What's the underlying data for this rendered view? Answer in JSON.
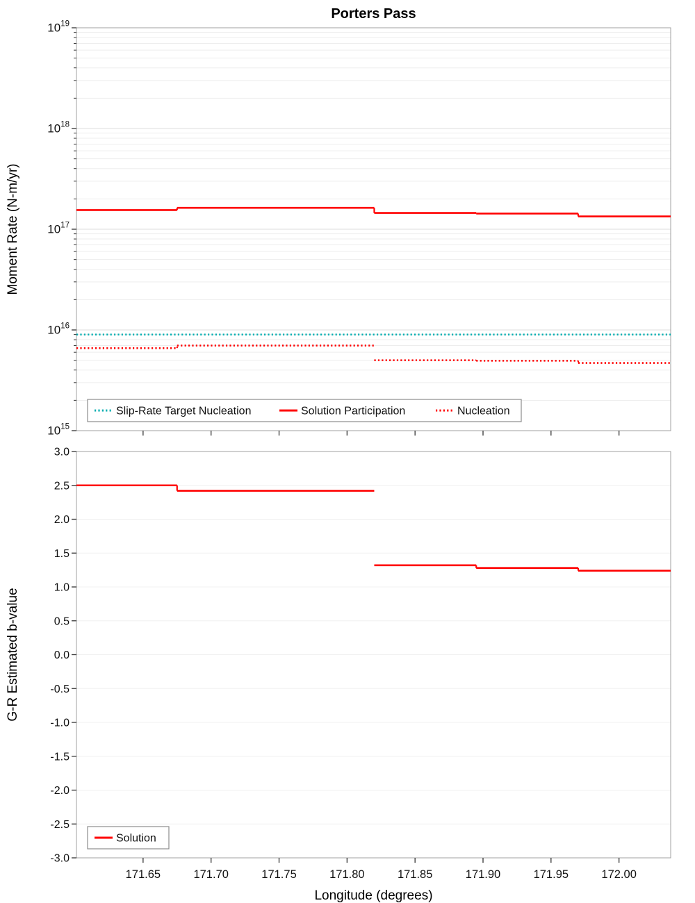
{
  "figure_title": "Porters Pass",
  "colors": {
    "red": "#FF0000",
    "teal": "#00AEB0",
    "grid_major": "#dedede",
    "grid_minor": "#ededed"
  },
  "chart_data": [
    {
      "type": "line",
      "panel": "top",
      "title": "Porters Pass",
      "ylabel": "Moment Rate (N-m/yr)",
      "yscale": "log",
      "ylim": [
        1000000000000000.0,
        1e+19
      ],
      "xlim": [
        171.601,
        172.038
      ],
      "show_xtick_labels": false,
      "yticks": [
        {
          "value": 1000000000000000.0,
          "label": "10^15"
        },
        {
          "value": 1e+16,
          "label": "10^16"
        },
        {
          "value": 1e+17,
          "label": "10^17"
        },
        {
          "value": 1e+18,
          "label": "10^18"
        },
        {
          "value": 1e+19,
          "label": "10^19"
        }
      ],
      "xticks": [
        {
          "value": 171.65,
          "label": "171.65"
        },
        {
          "value": 171.7,
          "label": "171.70"
        },
        {
          "value": 171.75,
          "label": "171.75"
        },
        {
          "value": 171.8,
          "label": "171.80"
        },
        {
          "value": 171.85,
          "label": "171.85"
        },
        {
          "value": 171.9,
          "label": "171.90"
        },
        {
          "value": 171.95,
          "label": "171.95"
        },
        {
          "value": 172.0,
          "label": "172.00"
        }
      ],
      "series": [
        {
          "name": "Slip-Rate Target Nucleation",
          "color": "#00AEB0",
          "style": "dotted",
          "steps": [
            {
              "x0": 171.601,
              "x1": 172.038,
              "y": 9000000000000000.0
            }
          ]
        },
        {
          "name": "Solution Participation",
          "color": "#FF0000",
          "style": "solid",
          "steps": [
            {
              "x0": 171.601,
              "x1": 171.675,
              "y": 1.55e+17
            },
            {
              "x0": 171.675,
              "x1": 171.82,
              "y": 1.63e+17
            },
            {
              "x0": 171.82,
              "x1": 171.895,
              "y": 1.45e+17
            },
            {
              "x0": 171.895,
              "x1": 171.97,
              "y": 1.43e+17
            },
            {
              "x0": 171.97,
              "x1": 172.038,
              "y": 1.34e+17
            }
          ]
        },
        {
          "name": "Nucleation",
          "color": "#FF0000",
          "style": "dotted",
          "steps": [
            {
              "x0": 171.601,
              "x1": 171.675,
              "y": 6600000000000000.0
            },
            {
              "x0": 171.675,
              "x1": 171.82,
              "y": 7000000000000000.0
            },
            {
              "x0": 171.82,
              "x1": 171.895,
              "y": 5000000000000000.0
            },
            {
              "x0": 171.895,
              "x1": 171.97,
              "y": 4950000000000000.0
            },
            {
              "x0": 171.97,
              "x1": 172.038,
              "y": 4700000000000000.0
            }
          ]
        }
      ],
      "legend": {
        "position": "bottom-left",
        "entries": [
          "Slip-Rate Target Nucleation",
          "Solution Participation",
          "Nucleation"
        ]
      }
    },
    {
      "type": "line",
      "panel": "bottom",
      "ylabel": "G-R Estimated b-value",
      "xlabel": "Longitude (degrees)",
      "yscale": "linear",
      "ylim": [
        -3.0,
        3.0
      ],
      "xlim": [
        171.601,
        172.038
      ],
      "show_xtick_labels": true,
      "yticks": [
        {
          "value": 3.0,
          "label": "3.0"
        },
        {
          "value": 2.5,
          "label": "2.5"
        },
        {
          "value": 2.0,
          "label": "2.0"
        },
        {
          "value": 1.5,
          "label": "1.5"
        },
        {
          "value": 1.0,
          "label": "1.0"
        },
        {
          "value": 0.5,
          "label": "0.5"
        },
        {
          "value": 0.0,
          "label": "0.0"
        },
        {
          "value": -0.5,
          "label": "-0.5"
        },
        {
          "value": -1.0,
          "label": "-1.0"
        },
        {
          "value": -1.5,
          "label": "-1.5"
        },
        {
          "value": -2.0,
          "label": "-2.0"
        },
        {
          "value": -2.5,
          "label": "-2.5"
        },
        {
          "value": -3.0,
          "label": "-3.0"
        }
      ],
      "xticks": [
        {
          "value": 171.65,
          "label": "171.65"
        },
        {
          "value": 171.7,
          "label": "171.70"
        },
        {
          "value": 171.75,
          "label": "171.75"
        },
        {
          "value": 171.8,
          "label": "171.80"
        },
        {
          "value": 171.85,
          "label": "171.85"
        },
        {
          "value": 171.9,
          "label": "171.90"
        },
        {
          "value": 171.95,
          "label": "171.95"
        },
        {
          "value": 172.0,
          "label": "172.00"
        }
      ],
      "series": [
        {
          "name": "Solution",
          "color": "#FF0000",
          "style": "solid",
          "steps": [
            {
              "x0": 171.601,
              "x1": 171.675,
              "y": 2.5
            },
            {
              "x0": 171.675,
              "x1": 171.82,
              "y": 2.42
            },
            {
              "x0": 171.82,
              "x1": 171.895,
              "y": 1.32
            },
            {
              "x0": 171.895,
              "x1": 171.97,
              "y": 1.28
            },
            {
              "x0": 171.97,
              "x1": 172.038,
              "y": 1.24
            }
          ]
        }
      ],
      "legend": {
        "position": "bottom-left",
        "entries": [
          "Solution"
        ]
      }
    }
  ]
}
